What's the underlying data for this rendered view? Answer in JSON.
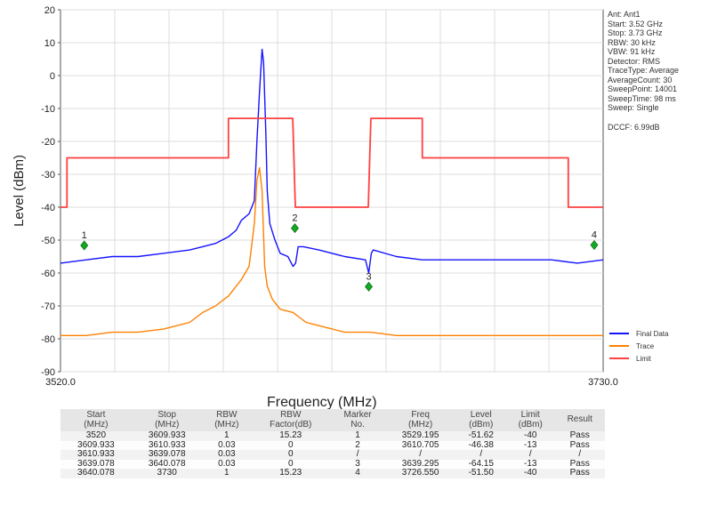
{
  "info_panel": {
    "lines": [
      "Ant: Ant1",
      "Start: 3.52 GHz",
      "Stop: 3.73 GHz",
      "RBW: 30 kHz",
      "VBW: 91 kHz",
      "Detector: RMS",
      "TraceType: Average",
      "AverageCount: 30",
      "SweepPoint: 14001",
      "SweepTime: 98 ms",
      "Sweep: Single"
    ],
    "dccf": "DCCF: 6.99dB"
  },
  "chart_data": {
    "type": "line",
    "title": "",
    "xlabel": "Frequency (MHz)",
    "ylabel": "Level (dBm)",
    "xlim": [
      3520,
      3730
    ],
    "ylim": [
      -90,
      20
    ],
    "x_tick_labels": [
      "3520.0",
      "3730.0"
    ],
    "y_ticks": [
      20,
      10,
      0,
      -10,
      -20,
      -30,
      -40,
      -50,
      -60,
      -70,
      -80,
      -90
    ],
    "grid": true,
    "legend_position": "bottom-right",
    "series": [
      {
        "name": "Final Data",
        "color": "#1414ff",
        "points": [
          [
            3520,
            -57
          ],
          [
            3530,
            -56
          ],
          [
            3540,
            -55
          ],
          [
            3550,
            -55
          ],
          [
            3560,
            -54
          ],
          [
            3570,
            -53
          ],
          [
            3575,
            -52
          ],
          [
            3580,
            -51
          ],
          [
            3585,
            -49
          ],
          [
            3588,
            -47
          ],
          [
            3590,
            -44
          ],
          [
            3593,
            -42
          ],
          [
            3595,
            -38
          ],
          [
            3596,
            -20
          ],
          [
            3597,
            -5
          ],
          [
            3598,
            8
          ],
          [
            3598.6,
            4
          ],
          [
            3599.5,
            -18
          ],
          [
            3600,
            -35
          ],
          [
            3601,
            -45
          ],
          [
            3603,
            -50
          ],
          [
            3605,
            -54
          ],
          [
            3608,
            -55
          ],
          [
            3610,
            -58
          ],
          [
            3611,
            -57
          ],
          [
            3612,
            -52
          ],
          [
            3614,
            -52
          ],
          [
            3620,
            -53
          ],
          [
            3630,
            -55
          ],
          [
            3638,
            -56
          ],
          [
            3639.3,
            -60
          ],
          [
            3640.3,
            -54
          ],
          [
            3641,
            -53
          ],
          [
            3650,
            -55
          ],
          [
            3660,
            -56
          ],
          [
            3670,
            -56
          ],
          [
            3680,
            -56
          ],
          [
            3690,
            -56
          ],
          [
            3700,
            -56
          ],
          [
            3710,
            -56
          ],
          [
            3720,
            -57
          ],
          [
            3730,
            -56
          ]
        ]
      },
      {
        "name": "Trace",
        "color": "#ff8000",
        "points": [
          [
            3520,
            -79
          ],
          [
            3530,
            -79
          ],
          [
            3540,
            -78
          ],
          [
            3550,
            -78
          ],
          [
            3560,
            -77
          ],
          [
            3570,
            -75
          ],
          [
            3575,
            -72
          ],
          [
            3580,
            -70
          ],
          [
            3585,
            -67
          ],
          [
            3588,
            -64
          ],
          [
            3590,
            -62
          ],
          [
            3593,
            -58
          ],
          [
            3595,
            -45
          ],
          [
            3596,
            -32
          ],
          [
            3597,
            -28
          ],
          [
            3598,
            -35
          ],
          [
            3599,
            -58
          ],
          [
            3600,
            -64
          ],
          [
            3602,
            -68
          ],
          [
            3605,
            -71
          ],
          [
            3610,
            -72
          ],
          [
            3615,
            -75
          ],
          [
            3620,
            -76
          ],
          [
            3630,
            -78
          ],
          [
            3640,
            -78
          ],
          [
            3650,
            -79
          ],
          [
            3660,
            -79
          ],
          [
            3670,
            -79
          ],
          [
            3680,
            -79
          ],
          [
            3690,
            -79
          ],
          [
            3700,
            -79
          ],
          [
            3710,
            -79
          ],
          [
            3720,
            -79
          ],
          [
            3730,
            -79
          ]
        ]
      },
      {
        "name": "Limit",
        "color": "#ff4040",
        "points": [
          [
            3520,
            -40
          ],
          [
            3522.5,
            -40
          ],
          [
            3522.5,
            -25
          ],
          [
            3585,
            -25
          ],
          [
            3585,
            -13
          ],
          [
            3609.9,
            -13
          ],
          [
            3610.9,
            -40
          ],
          [
            3639.1,
            -40
          ],
          [
            3640.1,
            -13
          ],
          [
            3660,
            -13
          ],
          [
            3660,
            -25
          ],
          [
            3716.5,
            -25
          ],
          [
            3716.5,
            -40
          ],
          [
            3730,
            -40
          ]
        ]
      }
    ],
    "markers": [
      {
        "label": "1",
        "x": 3529.195,
        "y": -51.62
      },
      {
        "label": "2",
        "x": 3610.705,
        "y": -46.38
      },
      {
        "label": "3",
        "x": 3639.295,
        "y": -64.15
      },
      {
        "label": "4",
        "x": 3726.55,
        "y": -51.5
      }
    ]
  },
  "results_table": {
    "headers": [
      "Start\n(MHz)",
      "Stop\n(MHz)",
      "RBW\n(MHz)",
      "RBW\nFactor(dB)",
      "Marker\nNo.",
      "Freq\n(MHz)",
      "Level\n(dBm)",
      "Limit\n(dBm)",
      "Result"
    ],
    "rows": [
      [
        "3520",
        "3609.933",
        "1",
        "15.23",
        "1",
        "3529.195",
        "-51.62",
        "-40",
        "Pass"
      ],
      [
        "3609.933",
        "3610.933",
        "0.03",
        "0",
        "2",
        "3610.705",
        "-46.38",
        "-13",
        "Pass"
      ],
      [
        "3610.933",
        "3639.078",
        "0.03",
        "0",
        "/",
        "/",
        "/",
        "/",
        "/"
      ],
      [
        "3639.078",
        "3640.078",
        "0.03",
        "0",
        "3",
        "3639.295",
        "-64.15",
        "-13",
        "Pass"
      ],
      [
        "3640.078",
        "3730",
        "1",
        "15.23",
        "4",
        "3726.550",
        "-51.50",
        "-40",
        "Pass"
      ]
    ]
  }
}
